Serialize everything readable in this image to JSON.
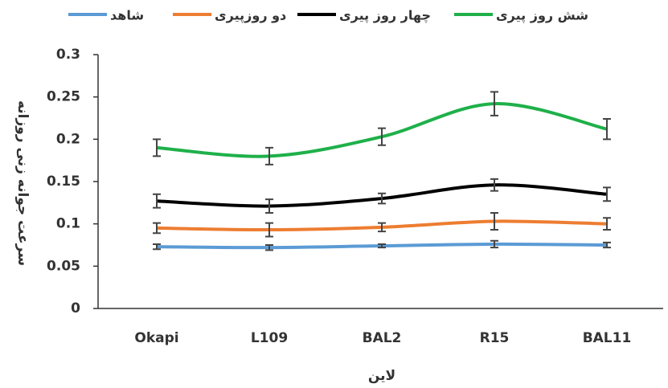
{
  "chart_data": {
    "type": "line",
    "y_label": "سرعت جوانه زنی روزانه",
    "x_label": "لاین",
    "categories": [
      "Okapi",
      "L109",
      "BAL2",
      "R15",
      "BAL11"
    ],
    "series": [
      {
        "name": "شاهد",
        "color": "#5b9bd5",
        "values": [
          0.073,
          0.072,
          0.074,
          0.076,
          0.075
        ],
        "errors": [
          0.003,
          0.003,
          0.002,
          0.004,
          0.003
        ]
      },
      {
        "name": "دو روزپیری",
        "color": "#ed7d31",
        "values": [
          0.095,
          0.093,
          0.096,
          0.103,
          0.1
        ],
        "errors": [
          0.006,
          0.008,
          0.005,
          0.01,
          0.007
        ]
      },
      {
        "name": "چهار روز پیری",
        "color": "#000000",
        "values": [
          0.127,
          0.121,
          0.13,
          0.146,
          0.135
        ],
        "errors": [
          0.008,
          0.008,
          0.006,
          0.007,
          0.008
        ]
      },
      {
        "name": "شش روز پیری",
        "color": "#1fb04a",
        "values": [
          0.19,
          0.18,
          0.203,
          0.242,
          0.212
        ],
        "errors": [
          0.01,
          0.01,
          0.01,
          0.014,
          0.012
        ]
      }
    ],
    "ylim": [
      0,
      0.3
    ],
    "yticks": [
      0,
      0.05,
      0.1,
      0.15,
      0.2,
      0.25,
      0.3
    ],
    "smooth": true,
    "error_bars": true
  }
}
